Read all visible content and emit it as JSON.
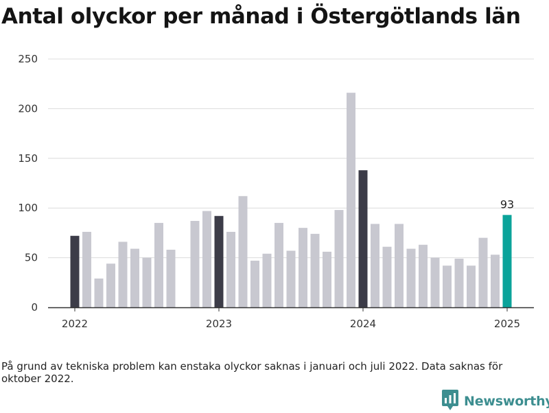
{
  "title": "Antal olyckor per månad i Östergötlands län",
  "footnote": "På grund av tekniska problem kan enstaka olyckor saknas i januari och juli 2022. Data saknas för oktober 2022.",
  "brand": {
    "name": "Newsworthy",
    "icon": "newsworthy-logo-icon",
    "color": "#3d8e90"
  },
  "colors": {
    "default_bar": "#c8c8d0",
    "january_bar": "#3c3c48",
    "latest_bar": "#0ba39a",
    "grid": "#dcdcdc",
    "axis": "#333333"
  },
  "chart_data": {
    "type": "bar",
    "title": "Antal olyckor per månad i Östergötlands län",
    "xlabel": "",
    "ylabel": "",
    "ylim": [
      0,
      250
    ],
    "yticks": [
      0,
      50,
      100,
      150,
      200,
      250
    ],
    "grid": true,
    "x_tick_labels": [
      {
        "label": "2022",
        "at": "2022-01"
      },
      {
        "label": "2023",
        "at": "2023-01"
      },
      {
        "label": "2024",
        "at": "2024-01"
      },
      {
        "label": "2025",
        "at": "2025-01"
      }
    ],
    "categories": [
      "2022-01",
      "2022-02",
      "2022-03",
      "2022-04",
      "2022-05",
      "2022-06",
      "2022-07",
      "2022-08",
      "2022-09",
      "2022-10",
      "2022-11",
      "2022-12",
      "2023-01",
      "2023-02",
      "2023-03",
      "2023-04",
      "2023-05",
      "2023-06",
      "2023-07",
      "2023-08",
      "2023-09",
      "2023-10",
      "2023-11",
      "2023-12",
      "2024-01",
      "2024-02",
      "2024-03",
      "2024-04",
      "2024-05",
      "2024-06",
      "2024-07",
      "2024-08",
      "2024-09",
      "2024-10",
      "2024-11",
      "2024-12",
      "2025-01"
    ],
    "values": [
      72,
      76,
      29,
      44,
      66,
      59,
      50,
      85,
      58,
      null,
      87,
      97,
      92,
      76,
      112,
      47,
      54,
      85,
      57,
      80,
      74,
      56,
      98,
      216,
      138,
      84,
      61,
      84,
      59,
      63,
      50,
      42,
      49,
      42,
      70,
      53,
      93
    ],
    "annotations": [
      {
        "category": "2025-01",
        "text": "93"
      }
    ]
  }
}
